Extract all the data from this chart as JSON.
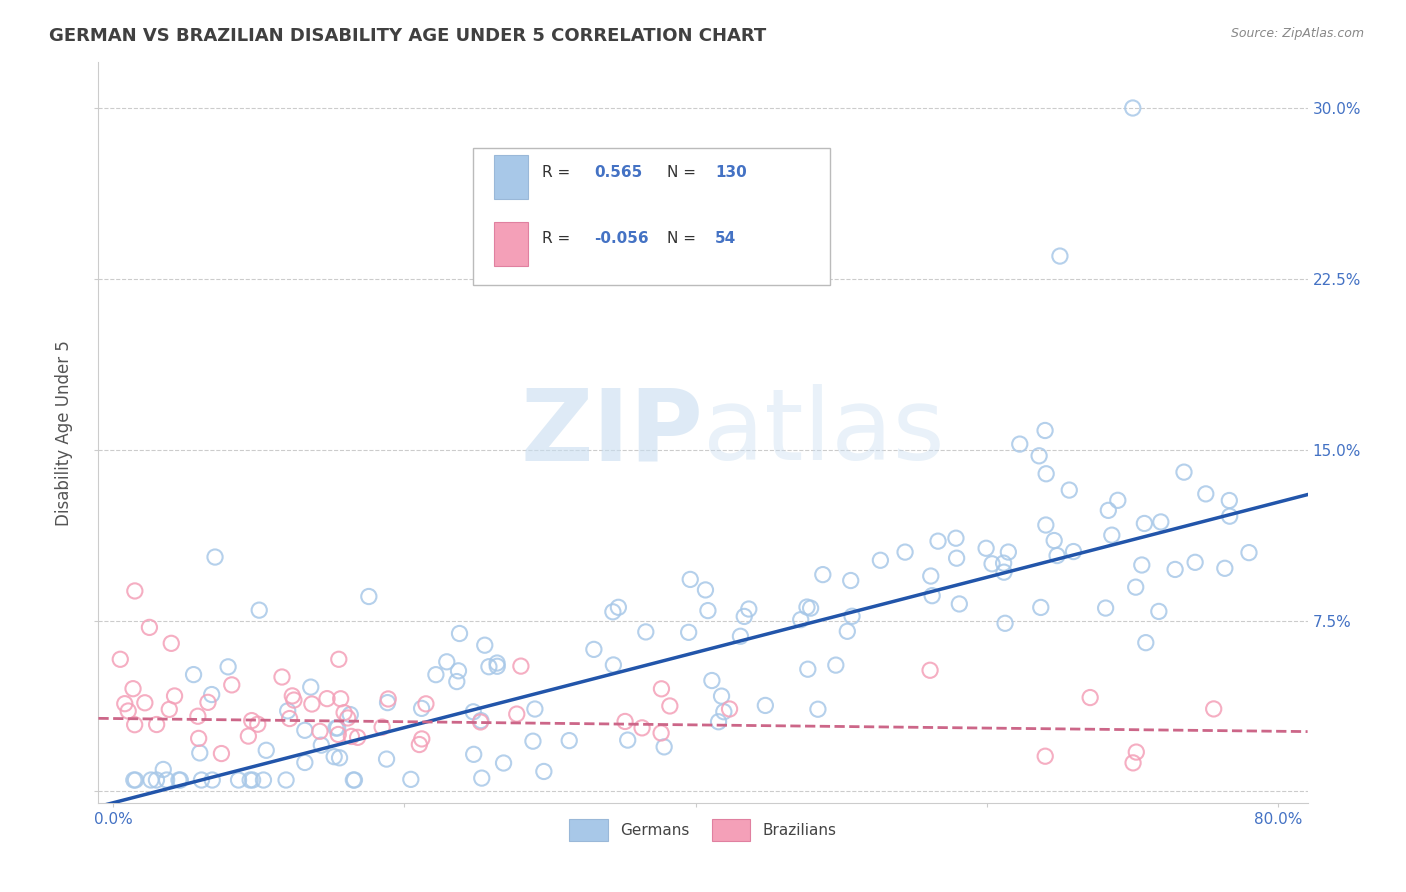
{
  "title": "GERMAN VS BRAZILIAN DISABILITY AGE UNDER 5 CORRELATION CHART",
  "source": "Source: ZipAtlas.com",
  "ylabel": "Disability Age Under 5",
  "xlim": [
    -0.01,
    0.82
  ],
  "ylim": [
    -0.005,
    0.32
  ],
  "xticks": [
    0.0,
    0.2,
    0.4,
    0.6,
    0.8
  ],
  "xtick_labels": [
    "0.0%",
    "",
    "",
    "",
    "80.0%"
  ],
  "yticks": [
    0.0,
    0.075,
    0.15,
    0.225,
    0.3
  ],
  "ytick_labels_right": [
    "",
    "7.5%",
    "15.0%",
    "22.5%",
    "30.0%"
  ],
  "german_r": 0.565,
  "german_n": 130,
  "brazilian_r": -0.056,
  "brazilian_n": 54,
  "german_color": "#a8c8e8",
  "brazilian_color": "#f4a0b8",
  "german_line_color": "#2255aa",
  "brazilian_line_color": "#cc6688",
  "legend_label_german": "Germans",
  "legend_label_brazilian": "Brazilians",
  "watermark_zip": "ZIP",
  "watermark_atlas": "atlas",
  "background_color": "#ffffff",
  "grid_color": "#cccccc",
  "title_color": "#404040",
  "axis_label_color": "#4472c4",
  "tick_label_color": "#4472c4",
  "german_line_intercept": -0.005,
  "german_line_slope": 0.165,
  "braz_line_intercept": 0.032,
  "braz_line_slope": -0.007
}
